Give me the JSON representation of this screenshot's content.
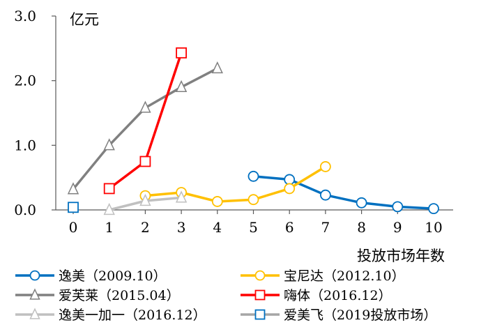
{
  "chart_data": {
    "type": "line",
    "title": "",
    "ylabel": "亿元",
    "xlabel": "投放市场年数",
    "xlim": [
      0,
      10
    ],
    "ylim": [
      0,
      3
    ],
    "xticks": [
      "0",
      "1",
      "2",
      "3",
      "4",
      "5",
      "6",
      "7",
      "8",
      "9",
      "10"
    ],
    "yticks": [
      "0.0",
      "1.0",
      "2.0",
      "3.0"
    ],
    "legend_position": "bottom",
    "series": [
      {
        "name": "逸美（2009.10）",
        "color": "#0070C0",
        "marker": "circle",
        "points": [
          [
            5,
            0.52
          ],
          [
            6,
            0.47
          ],
          [
            7,
            0.23
          ],
          [
            8,
            0.11
          ],
          [
            9,
            0.05
          ],
          [
            10,
            0.02
          ]
        ]
      },
      {
        "name": "宝尼达（2012.10）",
        "color": "#FFC000",
        "marker": "circle",
        "points": [
          [
            2,
            0.22
          ],
          [
            3,
            0.27
          ],
          [
            4,
            0.13
          ],
          [
            5,
            0.16
          ],
          [
            6,
            0.33
          ],
          [
            7,
            0.67
          ]
        ]
      },
      {
        "name": "爱芙莱（2015.04）",
        "color": "#808080",
        "marker": "triangle",
        "points": [
          [
            0,
            0.32
          ],
          [
            1,
            1.0
          ],
          [
            2,
            1.58
          ],
          [
            3,
            1.9
          ],
          [
            4,
            2.19
          ]
        ]
      },
      {
        "name": "嗨体（2016.12）",
        "color": "#FF0000",
        "marker": "square",
        "points": [
          [
            1,
            0.33
          ],
          [
            2,
            0.75
          ],
          [
            3,
            2.43
          ]
        ]
      },
      {
        "name": "逸美一加一（2016.12）",
        "color": "#C0C0C0",
        "marker": "triangle",
        "points": [
          [
            1,
            0.0
          ],
          [
            2,
            0.14
          ],
          [
            3,
            0.19
          ]
        ]
      },
      {
        "name": "爱美飞（2019投放市场）",
        "color": "#0070C0",
        "marker": "square",
        "line_color": "#A6A6A6",
        "points": [
          [
            0,
            0.04
          ]
        ]
      }
    ]
  }
}
